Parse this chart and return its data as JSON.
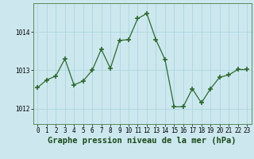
{
  "x": [
    0,
    1,
    2,
    3,
    4,
    5,
    6,
    7,
    8,
    9,
    10,
    11,
    12,
    13,
    14,
    15,
    16,
    17,
    18,
    19,
    20,
    21,
    22,
    23
  ],
  "y": [
    1012.55,
    1012.75,
    1012.85,
    1013.3,
    1012.62,
    1012.72,
    1013.0,
    1013.55,
    1013.05,
    1013.78,
    1013.8,
    1014.35,
    1014.48,
    1013.8,
    1013.28,
    1012.05,
    1012.05,
    1012.52,
    1012.15,
    1012.52,
    1012.82,
    1012.88,
    1013.02,
    1013.02
  ],
  "line_color": "#2d6a2d",
  "marker_color": "#2d6a2d",
  "bg_color": "#cce8ee",
  "grid_color": "#b0d8e0",
  "xlabel": "Graphe pression niveau de la mer (hPa)",
  "ylim": [
    1011.6,
    1014.75
  ],
  "yticks": [
    1012,
    1013,
    1014
  ],
  "xticks": [
    0,
    1,
    2,
    3,
    4,
    5,
    6,
    7,
    8,
    9,
    10,
    11,
    12,
    13,
    14,
    15,
    16,
    17,
    18,
    19,
    20,
    21,
    22,
    23
  ],
  "tick_fontsize": 5.5,
  "xlabel_fontsize": 7.5
}
